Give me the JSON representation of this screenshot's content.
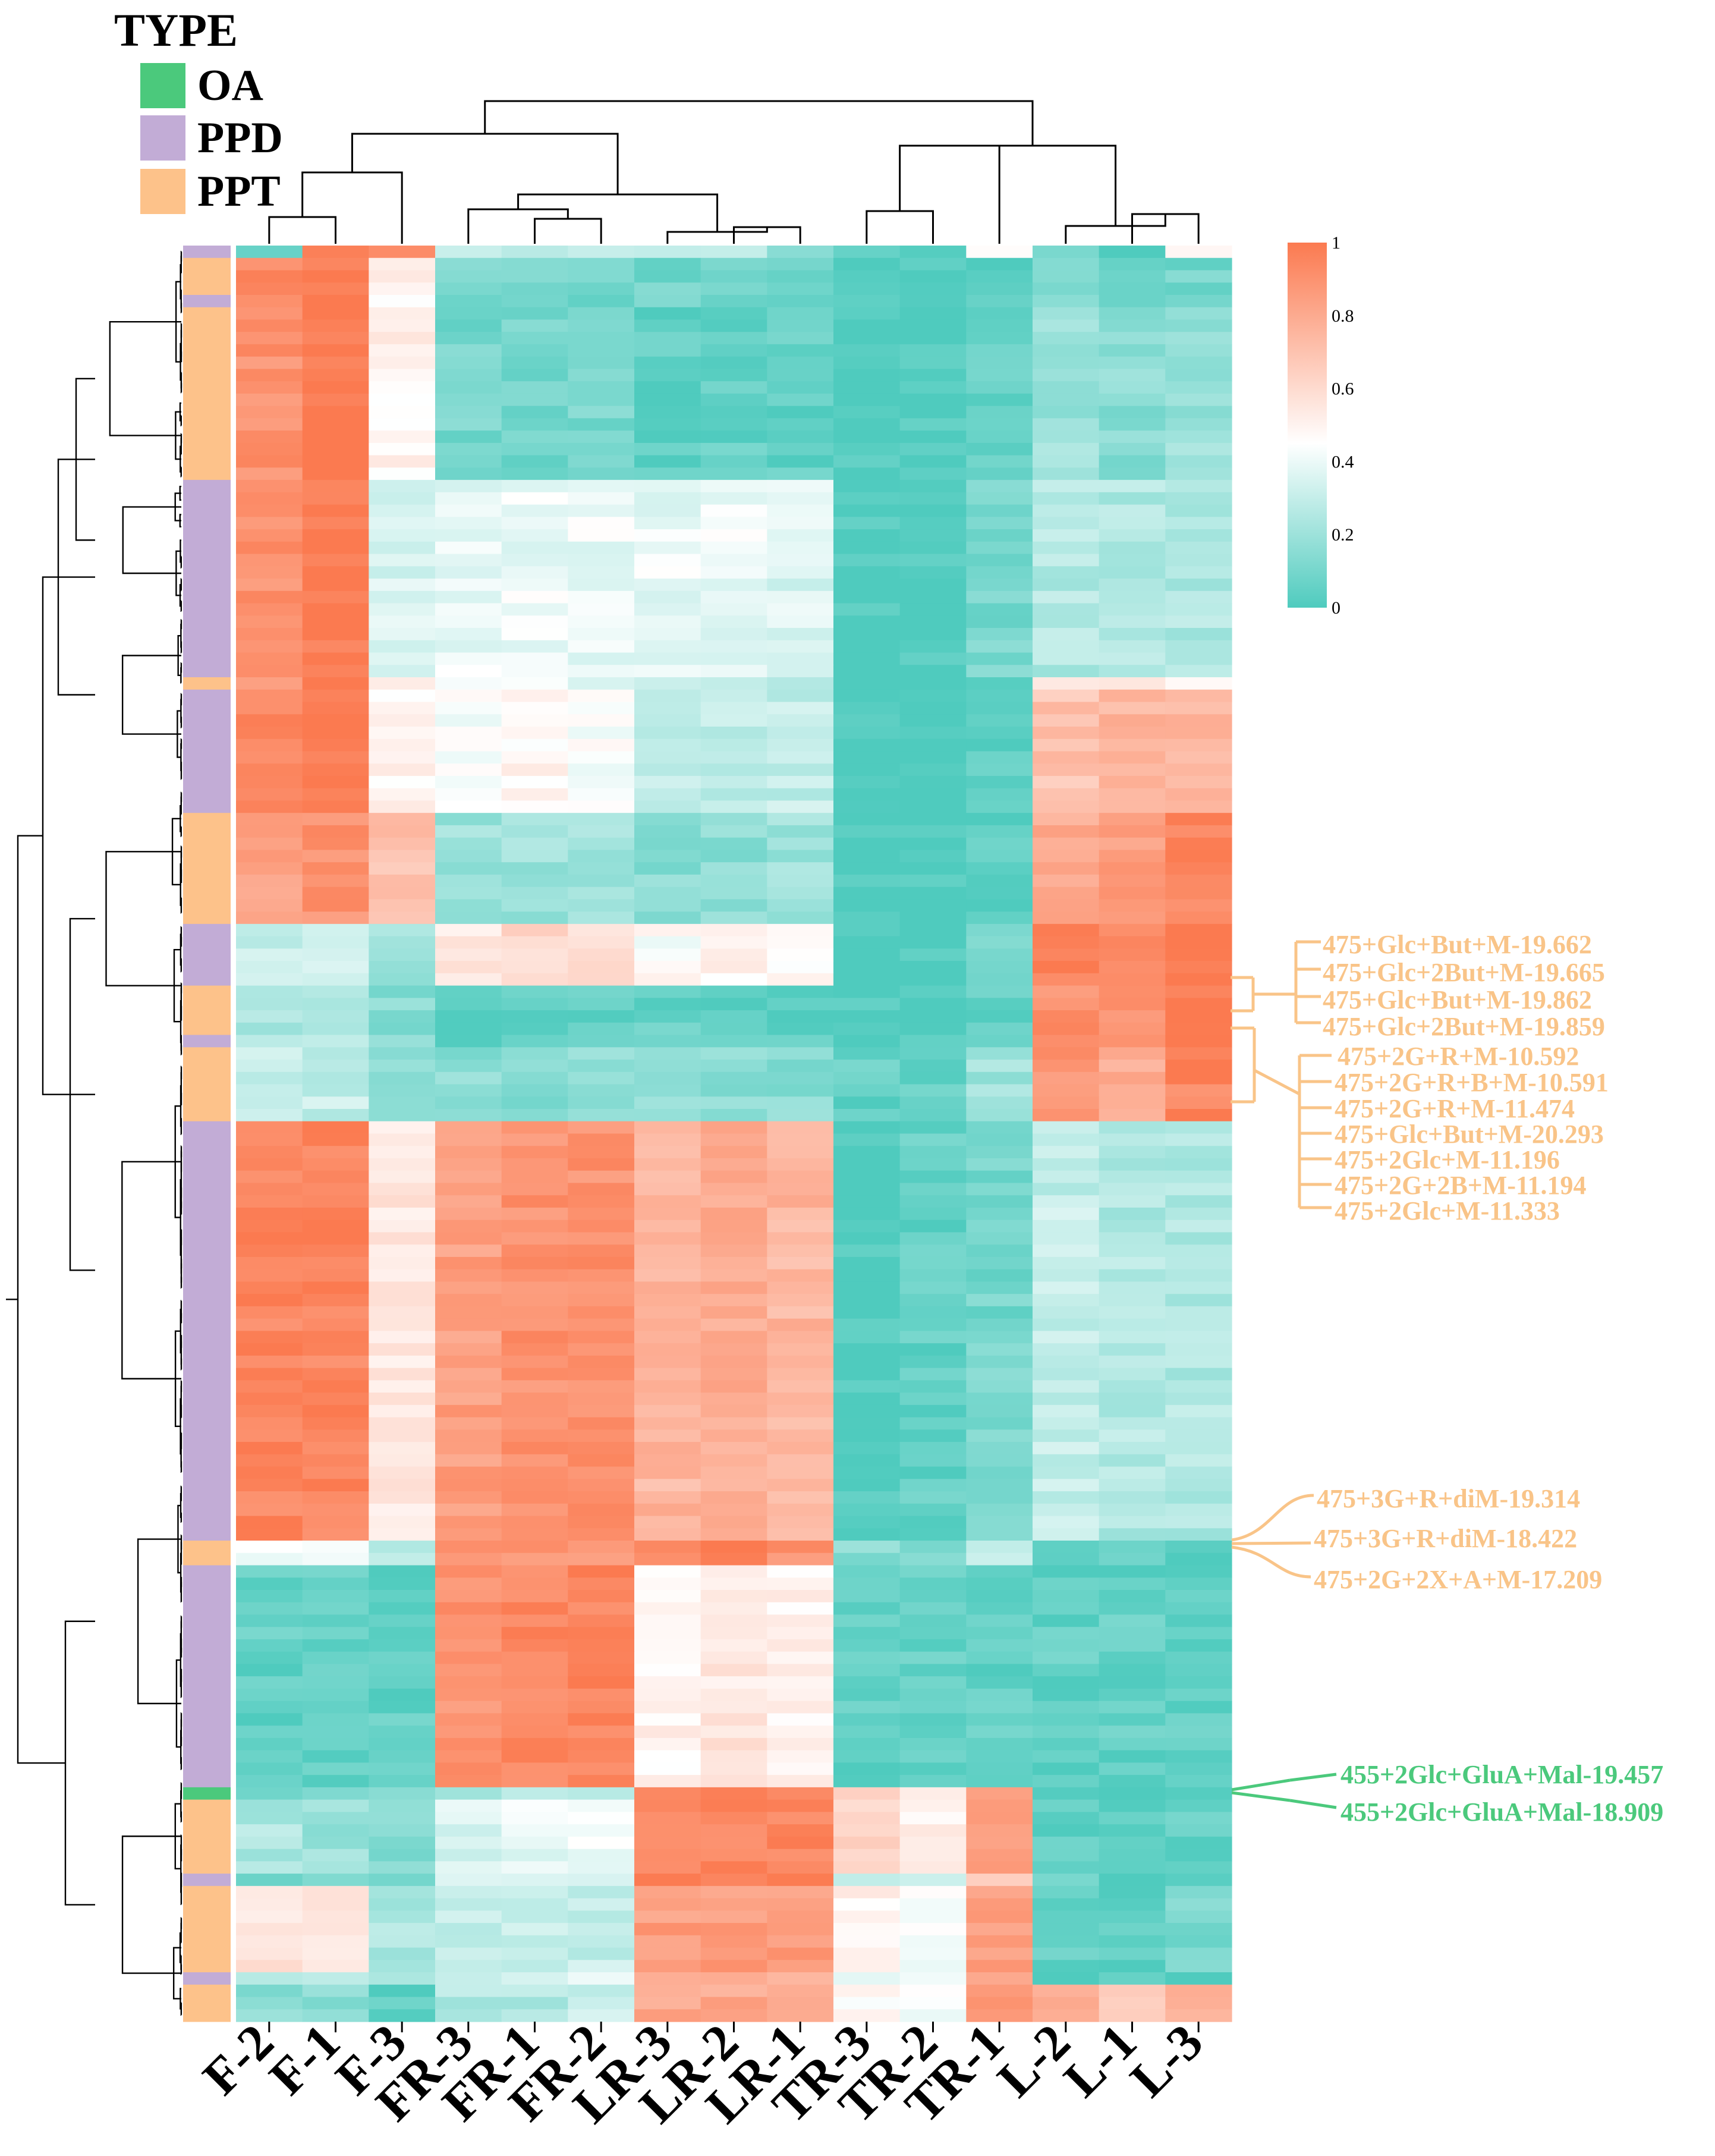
{
  "legend": {
    "title": "TYPE",
    "items": [
      {
        "label": "OA",
        "color": "#4bc97c"
      },
      {
        "label": "PPD",
        "color": "#c2acd6"
      },
      {
        "label": "PPT",
        "color": "#fdc28a"
      }
    ]
  },
  "colorbar": {
    "ticks": [
      "1",
      "0.8",
      "0.6",
      "0.4",
      "0.2",
      "0"
    ],
    "low_color": "#4fcbbe",
    "mid_color": "#ffffff",
    "high_color": "#fb7a50"
  },
  "chart_data": {
    "type": "heatmap",
    "title": "",
    "xlabel": "",
    "ylabel": "",
    "value_range": [
      0,
      1
    ],
    "columns": [
      "F-2",
      "F-1",
      "F-3",
      "FR-3",
      "FR-1",
      "FR-2",
      "LR-3",
      "LR-2",
      "LR-1",
      "TR-3",
      "TR-2",
      "TR-1",
      "L-2",
      "L-1",
      "L-3"
    ],
    "row_groups": [
      {
        "type": "PPD",
        "rows": 1,
        "values": [
          0.05,
          1.0,
          0.92,
          0.25,
          0.25,
          0.3,
          0.25,
          0.25,
          0.2,
          0.0,
          0.05,
          0.5,
          0.05,
          0.05,
          0.5
        ]
      },
      {
        "type": "PPT",
        "rows": 3,
        "values": [
          0.95,
          1.0,
          0.5,
          0.1,
          0.1,
          0.1,
          0.1,
          0.1,
          0.1,
          0.0,
          0.0,
          0.05,
          0.1,
          0.1,
          0.1
        ]
      },
      {
        "type": "PPD",
        "rows": 1,
        "values": [
          0.9,
          1.0,
          0.45,
          0.1,
          0.1,
          0.1,
          0.1,
          0.1,
          0.1,
          0.0,
          0.0,
          0.05,
          0.1,
          0.1,
          0.1
        ]
      },
      {
        "type": "PPT",
        "rows": 14,
        "values": [
          0.9,
          1.0,
          0.5,
          0.1,
          0.1,
          0.1,
          0.05,
          0.05,
          0.05,
          0.0,
          0.0,
          0.05,
          0.2,
          0.15,
          0.2
        ]
      },
      {
        "type": "PPD",
        "rows": 16,
        "values": [
          0.9,
          1.0,
          0.35,
          0.4,
          0.4,
          0.4,
          0.4,
          0.4,
          0.35,
          0.0,
          0.0,
          0.1,
          0.25,
          0.25,
          0.25
        ]
      },
      {
        "type": "PPT",
        "rows": 1,
        "values": [
          0.9,
          0.95,
          0.5,
          0.4,
          0.45,
          0.4,
          0.3,
          0.3,
          0.3,
          0.0,
          0.0,
          0.05,
          0.5,
          0.5,
          0.5
        ]
      },
      {
        "type": "PPD",
        "rows": 10,
        "values": [
          0.95,
          1.0,
          0.5,
          0.45,
          0.5,
          0.45,
          0.3,
          0.3,
          0.3,
          0.0,
          0.0,
          0.05,
          0.7,
          0.75,
          0.75
        ]
      },
      {
        "type": "PPT",
        "rows": 9,
        "values": [
          0.85,
          0.9,
          0.7,
          0.2,
          0.2,
          0.2,
          0.15,
          0.15,
          0.2,
          0.0,
          0.0,
          0.05,
          0.8,
          0.85,
          0.95
        ]
      },
      {
        "type": "PPD",
        "rows": 5,
        "values": [
          0.3,
          0.3,
          0.2,
          0.55,
          0.6,
          0.6,
          0.45,
          0.5,
          0.45,
          0.0,
          0.0,
          0.1,
          0.95,
          0.95,
          1.0
        ]
      },
      {
        "type": "PPT",
        "rows": 4,
        "values": [
          0.25,
          0.25,
          0.15,
          0.05,
          0.05,
          0.05,
          0.05,
          0.05,
          0.05,
          0.0,
          0.0,
          0.05,
          0.9,
          0.9,
          1.0
        ]
      },
      {
        "type": "PPD",
        "rows": 1,
        "values": [
          0.25,
          0.25,
          0.15,
          0.05,
          0.05,
          0.05,
          0.05,
          0.05,
          0.05,
          0.0,
          0.0,
          0.05,
          0.9,
          0.85,
          1.0
        ]
      },
      {
        "type": "PPT",
        "rows": 6,
        "values": [
          0.3,
          0.3,
          0.15,
          0.15,
          0.15,
          0.15,
          0.15,
          0.15,
          0.15,
          0.05,
          0.05,
          0.2,
          0.9,
          0.8,
          0.95
        ]
      },
      {
        "type": "PPD",
        "rows": 34,
        "values": [
          0.95,
          0.95,
          0.55,
          0.85,
          0.9,
          0.9,
          0.75,
          0.8,
          0.75,
          0.0,
          0.05,
          0.1,
          0.3,
          0.25,
          0.25
        ]
      },
      {
        "type": "PPT",
        "rows": 2,
        "values": [
          0.4,
          0.4,
          0.25,
          0.9,
          0.9,
          0.85,
          0.95,
          1.0,
          0.9,
          0.15,
          0.1,
          0.3,
          0.05,
          0.05,
          0.05
        ]
      },
      {
        "type": "PPD",
        "rows": 18,
        "values": [
          0.05,
          0.05,
          0.05,
          0.9,
          0.95,
          0.95,
          0.5,
          0.55,
          0.5,
          0.05,
          0.05,
          0.05,
          0.05,
          0.05,
          0.05
        ]
      },
      {
        "type": "OA",
        "rows": 1,
        "values": [
          0.1,
          0.1,
          0.1,
          0.25,
          0.25,
          0.25,
          0.95,
          0.95,
          0.9,
          0.6,
          0.55,
          0.8,
          0.05,
          0.05,
          0.05
        ]
      },
      {
        "type": "PPT",
        "rows": 6,
        "values": [
          0.25,
          0.2,
          0.15,
          0.35,
          0.4,
          0.4,
          0.95,
          0.95,
          0.95,
          0.6,
          0.5,
          0.85,
          0.05,
          0.05,
          0.05
        ]
      },
      {
        "type": "PPD",
        "rows": 1,
        "values": [
          0.1,
          0.1,
          0.1,
          0.4,
          0.4,
          0.4,
          0.95,
          0.95,
          0.95,
          0.3,
          0.3,
          0.6,
          0.05,
          0.05,
          0.05
        ]
      },
      {
        "type": "PPT",
        "rows": 7,
        "values": [
          0.55,
          0.55,
          0.25,
          0.3,
          0.3,
          0.3,
          0.85,
          0.85,
          0.85,
          0.5,
          0.45,
          0.85,
          0.05,
          0.05,
          0.1
        ]
      },
      {
        "type": "PPD",
        "rows": 1,
        "values": [
          0.3,
          0.3,
          0.2,
          0.3,
          0.3,
          0.4,
          0.8,
          0.8,
          0.8,
          0.4,
          0.4,
          0.8,
          0.05,
          0.05,
          0.05
        ]
      },
      {
        "type": "PPT",
        "rows": 3,
        "values": [
          0.15,
          0.15,
          0.05,
          0.25,
          0.25,
          0.3,
          0.8,
          0.8,
          0.8,
          0.45,
          0.4,
          0.9,
          0.8,
          0.7,
          0.75
        ]
      }
    ]
  },
  "annotations": [
    {
      "label": "475+Glc+But+M-19.662",
      "color": "#f9c488"
    },
    {
      "label": "475+Glc+2But+M-19.665",
      "color": "#f9c488"
    },
    {
      "label": "475+Glc+But+M-19.862",
      "color": "#f9c488"
    },
    {
      "label": "475+Glc+2But+M-19.859",
      "color": "#f9c488"
    },
    {
      "label": "475+2G+R+M-10.592",
      "color": "#f9c488"
    },
    {
      "label": "475+2G+R+B+M-10.591",
      "color": "#f9c488"
    },
    {
      "label": "475+2G+R+M-11.474",
      "color": "#f9c488"
    },
    {
      "label": "475+Glc+But+M-20.293",
      "color": "#f9c488"
    },
    {
      "label": "475+2Glc+M-11.196",
      "color": "#f9c488"
    },
    {
      "label": "475+2G+2B+M-11.194",
      "color": "#f9c488"
    },
    {
      "label": "475+2Glc+M-11.333",
      "color": "#f9c488"
    },
    {
      "label": "475+3G+R+diM-19.314",
      "color": "#f9c488"
    },
    {
      "label": "475+3G+R+diM-18.422",
      "color": "#f9c488"
    },
    {
      "label": "475+2G+2X+A+M-17.209",
      "color": "#f9c488"
    },
    {
      "label": "455+2Glc+GluA+Mal-19.457",
      "color": "#4bc97c"
    },
    {
      "label": "455+2Glc+GluA+Mal-18.909",
      "color": "#4bc97c"
    }
  ]
}
